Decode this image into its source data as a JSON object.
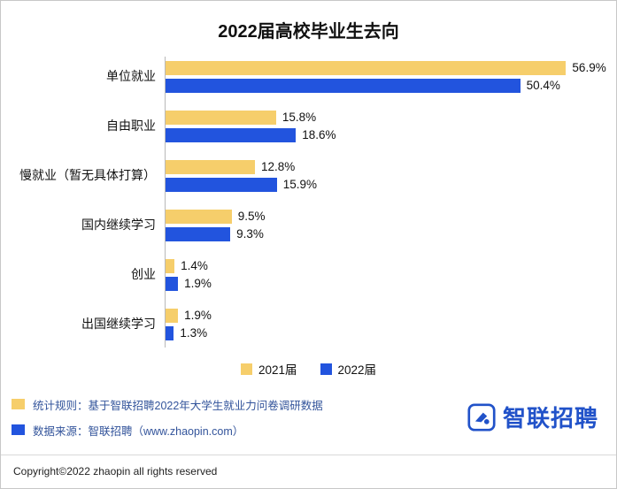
{
  "chart_data": {
    "type": "bar",
    "orientation": "horizontal",
    "title": "2022届高校毕业生去向",
    "categories": [
      "单位就业",
      "自由职业",
      "慢就业（暂无具体打算）",
      "国内继续学习",
      "创业",
      "出国继续学习"
    ],
    "series": [
      {
        "name": "2021届",
        "color": "#f6ce6b",
        "values": [
          56.9,
          15.8,
          12.8,
          9.5,
          1.4,
          1.9
        ]
      },
      {
        "name": "2022届",
        "color": "#2254de",
        "values": [
          50.4,
          18.6,
          15.9,
          9.3,
          1.9,
          1.3
        ]
      }
    ],
    "xlim": [
      0,
      64
    ],
    "value_suffix": "%",
    "grid": false,
    "legend_position": "bottom"
  },
  "footer": {
    "note1": "统计规则：基于智联招聘2022年大学生就业力问卷调研数据",
    "note2": "数据来源：智联招聘（www.zhaopin.com）",
    "logo_text": "智联招聘",
    "copyright": "Copyright©2022 zhaopin all rights reserved"
  }
}
